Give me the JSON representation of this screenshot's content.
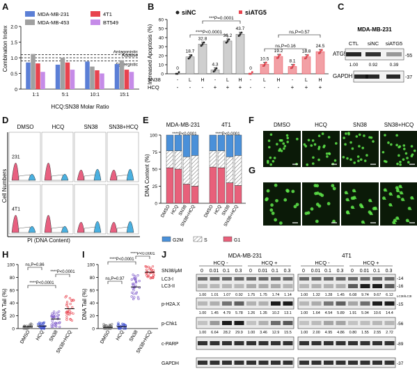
{
  "panel_letters": [
    "A",
    "B",
    "C",
    "D",
    "E",
    "F",
    "G",
    "H",
    "I",
    "J"
  ],
  "panelA": {
    "ylabel": "Combination Index",
    "xlabel": "HCQ:SN38 Molar Ratio",
    "ylim": [
      0,
      2.0
    ],
    "yticks": [
      "0",
      "0.5",
      "1.0",
      "1.5",
      "2.0"
    ],
    "categories": [
      "1:1",
      "5:1",
      "10:1",
      "15:1"
    ],
    "legend": [
      "MDA-MB-231",
      "MDA-MB-453",
      "4T1",
      "BT549"
    ],
    "colors": [
      "#5b7fd6",
      "#a0a0a0",
      "#e8434e",
      "#c58be8"
    ],
    "lines": [
      "Antagonistic",
      "Additive",
      "Synergistic"
    ],
    "series": [
      {
        "name": "MDA-MB-231",
        "values": [
          0.85,
          0.78,
          0.88,
          0.8
        ]
      },
      {
        "name": "MDA-MB-453",
        "values": [
          1.12,
          1.0,
          0.72,
          0.92
        ]
      },
      {
        "name": "4T1",
        "values": [
          0.82,
          0.85,
          0.6,
          0.62
        ]
      },
      {
        "name": "BT549",
        "values": [
          0.55,
          0.62,
          0.5,
          0.55
        ]
      }
    ]
  },
  "panelB": {
    "ylabel": "Increased Apoptosis (%)",
    "yticks": [
      "0",
      "10",
      "20",
      "30",
      "40",
      "50",
      "60"
    ],
    "legend": [
      "siNC",
      "siATG5"
    ],
    "row_sn38": "SN38",
    "row_hcq": "HCQ",
    "sn38_marks": [
      "-",
      "L",
      "H",
      "-",
      "L",
      "H",
      "-",
      "L",
      "H",
      "-",
      "L",
      "H"
    ],
    "hcq_marks": [
      "-",
      "-",
      "-",
      "+",
      "+",
      "+",
      "-",
      "-",
      "-",
      "+",
      "+",
      "+"
    ],
    "values": [
      0,
      18.7,
      32.8,
      4.3,
      36.2,
      43.7,
      0,
      10.5,
      19.2,
      8.1,
      18.8,
      24.5
    ],
    "value_labels": [
      "0",
      "18.7",
      "32.8",
      "4.3",
      "36.2",
      "43.7",
      "0",
      "10.5",
      "19.2",
      "8.1",
      "18.8",
      "24.5"
    ],
    "stats": [
      "***P=0.0001",
      "****P<0.0001",
      "ns,P=0.57",
      "ns,P=0.16"
    ]
  },
  "panelC": {
    "title": "MDA-MB-231",
    "lanes": [
      "CTL",
      "siNC",
      "siATG5"
    ],
    "rows": [
      {
        "name": "ATG5",
        "quant": [
          "1.00",
          "0.92",
          "0.39"
        ],
        "mw": "-55"
      },
      {
        "name": "GAPDH",
        "quant": [],
        "mw": "-37"
      }
    ]
  },
  "panelD": {
    "columns": [
      "DMSO",
      "HCQ",
      "SN38",
      "SN38+HCQ"
    ],
    "rows": [
      "231",
      "4T1"
    ],
    "ylabel": "Cell Numbers",
    "xlabel": "PI (DNA Content)",
    "legend": [
      "Dip G1",
      "Dip G2",
      "Dip S"
    ]
  },
  "panelE": {
    "titles": [
      "MDA-MB-231",
      "4T1"
    ],
    "ylabel": "DNA Content (%)",
    "yticks": [
      "0",
      "25",
      "50",
      "75",
      "100"
    ],
    "categories": [
      "DMSO",
      "HCQ",
      "SN38",
      "SN38+HCQ"
    ],
    "stats": [
      "****P<0.0001",
      "****P<0.0001"
    ],
    "legend": [
      "G2M",
      "S",
      "G1"
    ],
    "colors": [
      "#4a90d9",
      "#ffffff",
      "#e8607a"
    ],
    "groups": [
      {
        "name": "MDA-MB-231",
        "G1": [
          52,
          50,
          28,
          25
        ],
        "S": [
          25,
          27,
          40,
          45
        ],
        "G2M": [
          23,
          23,
          32,
          30
        ]
      },
      {
        "name": "4T1",
        "G1": [
          53,
          52,
          30,
          26
        ],
        "S": [
          24,
          25,
          38,
          44
        ],
        "G2M": [
          23,
          23,
          32,
          30
        ]
      }
    ]
  },
  "panelF": {
    "labels": [
      "DMSO",
      "HCQ",
      "SN38",
      "SN38+HCQ"
    ]
  },
  "panelG": {},
  "panelH": {
    "ylabel": "DNA Tail (%)",
    "yticks": [
      "0",
      "20",
      "40",
      "60",
      "80",
      "100"
    ],
    "categories": [
      "DMSO",
      "HCQ",
      "SN38",
      "SN38+HCQ"
    ],
    "stats": [
      "ns,P=0.86",
      "****P<0.0001",
      "****P<0.0001"
    ],
    "means": [
      3,
      4,
      15,
      31
    ]
  },
  "panelI": {
    "ylabel": "DNA Tail (%)",
    "yticks": [
      "0",
      "20",
      "40",
      "60",
      "80",
      "100"
    ],
    "categories": [
      "DMSO",
      "HCQ",
      "SN38",
      "SN38+HCQ"
    ],
    "stats": [
      "ns,P=0.97",
      "****P<0.0001",
      "****P<0.0001"
    ],
    "means": [
      2,
      3,
      65,
      88
    ]
  },
  "panelJ": {
    "cells": [
      "MDA-MB-231",
      "4T1"
    ],
    "sn38_label": "SN38/μM",
    "hcq": [
      "HCQ -",
      "HCQ +"
    ],
    "doses": [
      "0",
      "0.01",
      "0.1",
      "0.3",
      "0",
      "0.01",
      "0.1",
      "0.3"
    ],
    "proteins": [
      "LC3-I",
      "LC3-II",
      "p-H2A.X",
      "p-Chk1",
      "c-PARP",
      "GAPDH"
    ],
    "quant_231": [
      [
        "1.00",
        "1.01",
        "1.07",
        "0.92",
        "1.75",
        "1.75",
        "1.74",
        "1.14"
      ],
      [
        "1.00",
        "1.45",
        "4.79",
        "5.78",
        "1.26",
        "1.35",
        "10.2",
        "13.1"
      ],
      [
        "1.00",
        "6.64",
        "28.2",
        "29.9",
        "1.00",
        "3.46",
        "12.9",
        "15.5"
      ]
    ],
    "quant_4t1": [
      [
        "1.00",
        "1.32",
        "1.28",
        "1.45",
        "6.08",
        "9.74",
        "9.67",
        "6.12"
      ],
      [
        "1.00",
        "1.64",
        "4.54",
        "5.89",
        "1.91",
        "5.04",
        "10.6",
        "14.4"
      ],
      [
        "1.00",
        "2.00",
        "4.95",
        "4.86",
        "0.80",
        "1.55",
        "2.55",
        "2.72"
      ]
    ],
    "mw": [
      "-14",
      "-16",
      "-15",
      "-56",
      "-89",
      "-37"
    ],
    "lc3_ratio": "LC3II/LC3I"
  }
}
